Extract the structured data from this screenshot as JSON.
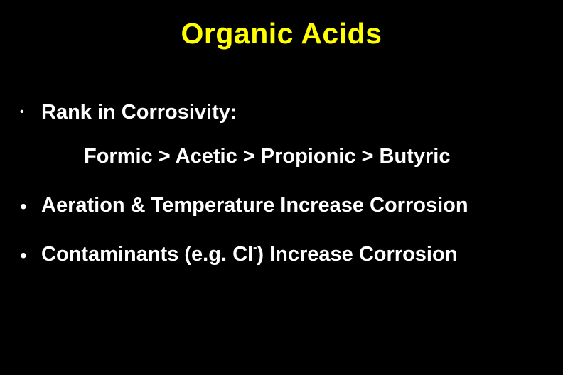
{
  "slide": {
    "title": "Organic Acids",
    "title_color": "#ffff00",
    "background_color": "#000000",
    "text_color": "#ffffff",
    "title_fontsize": 41,
    "body_fontsize": 29,
    "font_weight": "bold",
    "bullets": [
      {
        "text": "Rank in Corrosivity:",
        "dot_size": "small",
        "sub": "Formic > Acetic > Propionic > Butyric"
      },
      {
        "text": "Aeration & Temperature Increase Corrosion",
        "dot_size": "large"
      },
      {
        "text_prefix": "Contaminants (e.g. Cl",
        "superscript": "-",
        "text_suffix": ") Increase Corrosion",
        "dot_size": "large"
      }
    ]
  }
}
